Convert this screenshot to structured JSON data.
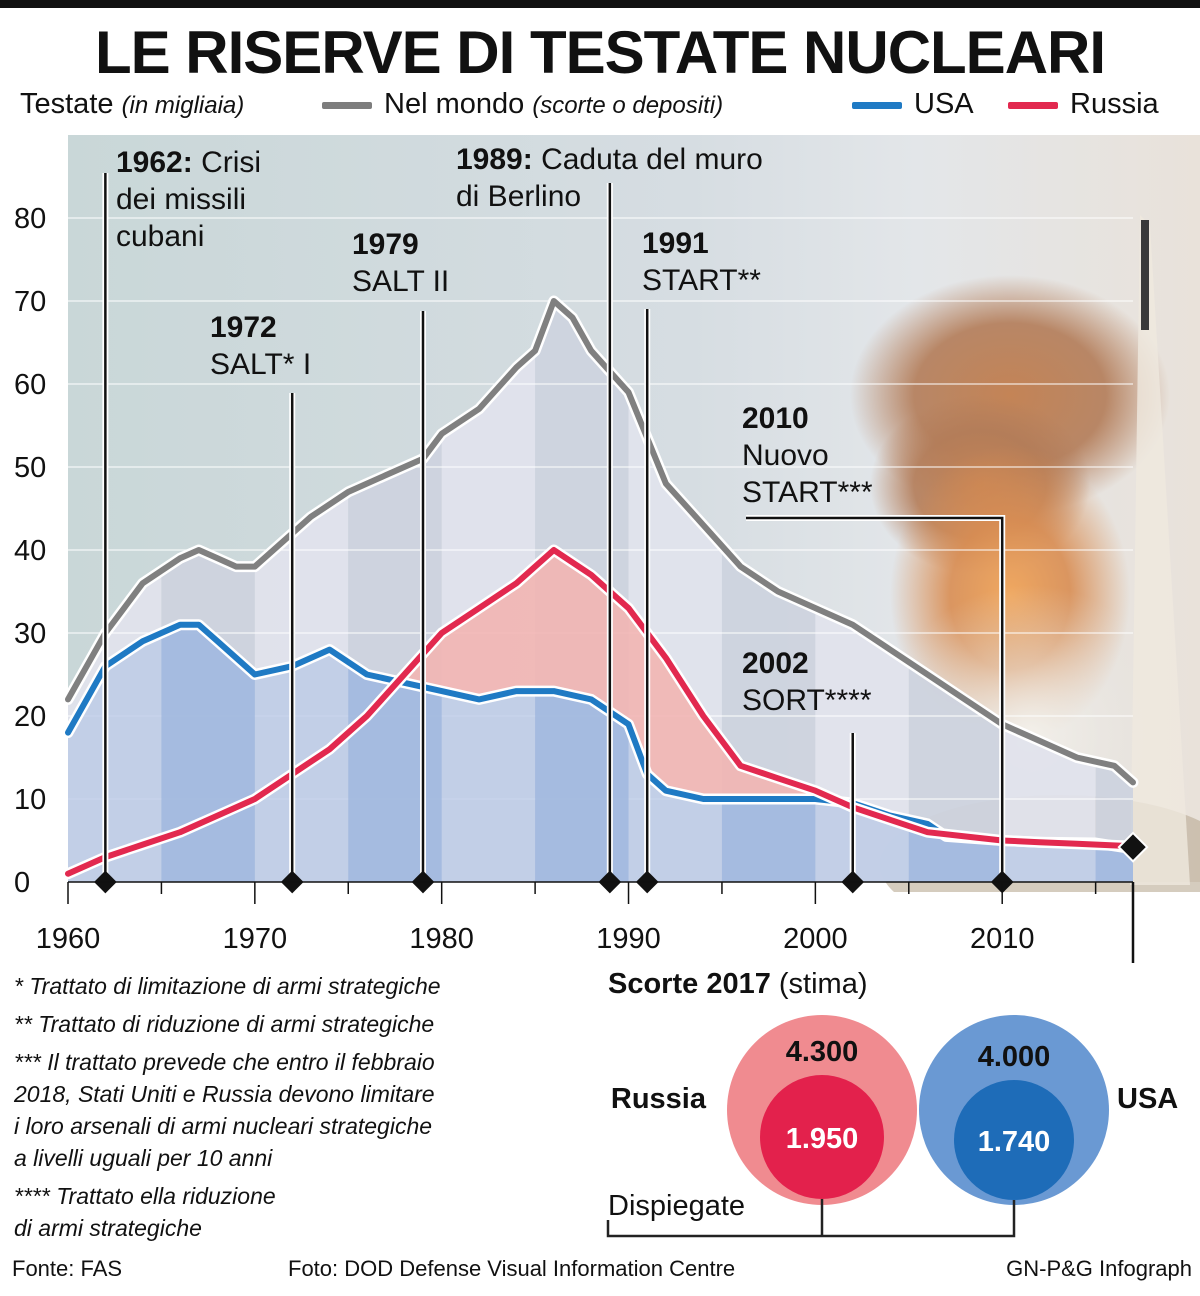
{
  "title": "LE RISERVE DI TESTATE NUCLEARI",
  "header": {
    "y_label": "Testate",
    "y_unit": "(in migliaia)",
    "legend": [
      {
        "name": "Nel mondo",
        "note": "(scorte o depositi)",
        "color": "#808080"
      },
      {
        "name": "USA",
        "note": "",
        "color": "#1f7ac4"
      },
      {
        "name": "Russia",
        "note": "",
        "color": "#e2294f"
      }
    ]
  },
  "chart_data": {
    "type": "line",
    "ylim": [
      0,
      90
    ],
    "xlim": [
      1960,
      2017
    ],
    "y_ticks": [
      0,
      10,
      20,
      30,
      40,
      50,
      60,
      70,
      80
    ],
    "x_ticks": [
      1960,
      1970,
      1980,
      1990,
      2000,
      2010
    ],
    "series": [
      {
        "name": "Nel mondo",
        "color": "#808080",
        "points": [
          [
            1960,
            22
          ],
          [
            1962,
            30
          ],
          [
            1964,
            36
          ],
          [
            1966,
            39
          ],
          [
            1967,
            40
          ],
          [
            1968,
            39
          ],
          [
            1969,
            38
          ],
          [
            1970,
            38
          ],
          [
            1971,
            40
          ],
          [
            1973,
            44
          ],
          [
            1975,
            47
          ],
          [
            1977,
            49
          ],
          [
            1979,
            51
          ],
          [
            1980,
            54
          ],
          [
            1982,
            57
          ],
          [
            1984,
            62
          ],
          [
            1985,
            64
          ],
          [
            1986,
            70
          ],
          [
            1987,
            68
          ],
          [
            1988,
            64
          ],
          [
            1990,
            59
          ],
          [
            1992,
            48
          ],
          [
            1994,
            43
          ],
          [
            1996,
            38
          ],
          [
            1998,
            35
          ],
          [
            2000,
            33
          ],
          [
            2002,
            31
          ],
          [
            2004,
            28
          ],
          [
            2006,
            25
          ],
          [
            2008,
            22
          ],
          [
            2010,
            19
          ],
          [
            2012,
            17
          ],
          [
            2014,
            15
          ],
          [
            2016,
            14
          ],
          [
            2017,
            12
          ]
        ]
      },
      {
        "name": "USA",
        "color": "#1f7ac4",
        "points": [
          [
            1960,
            18
          ],
          [
            1962,
            26
          ],
          [
            1964,
            29
          ],
          [
            1966,
            31
          ],
          [
            1967,
            31
          ],
          [
            1968,
            29
          ],
          [
            1970,
            25
          ],
          [
            1972,
            26
          ],
          [
            1974,
            28
          ],
          [
            1976,
            25
          ],
          [
            1978,
            24
          ],
          [
            1980,
            23
          ],
          [
            1982,
            22
          ],
          [
            1984,
            23
          ],
          [
            1986,
            23
          ],
          [
            1988,
            22
          ],
          [
            1990,
            19
          ],
          [
            1991,
            13
          ],
          [
            1992,
            11
          ],
          [
            1994,
            10
          ],
          [
            1996,
            10
          ],
          [
            1998,
            10
          ],
          [
            2000,
            10
          ],
          [
            2002,
            9.5
          ],
          [
            2004,
            8
          ],
          [
            2006,
            7
          ],
          [
            2007,
            5.5
          ],
          [
            2010,
            5
          ],
          [
            2012,
            4.8
          ],
          [
            2015,
            4.7
          ],
          [
            2017,
            4.0
          ]
        ]
      },
      {
        "name": "Russia",
        "color": "#e2294f",
        "points": [
          [
            1960,
            1
          ],
          [
            1962,
            3
          ],
          [
            1964,
            4.5
          ],
          [
            1966,
            6
          ],
          [
            1968,
            8
          ],
          [
            1970,
            10
          ],
          [
            1972,
            13
          ],
          [
            1974,
            16
          ],
          [
            1976,
            20
          ],
          [
            1978,
            25
          ],
          [
            1980,
            30
          ],
          [
            1982,
            33
          ],
          [
            1984,
            36
          ],
          [
            1986,
            40
          ],
          [
            1988,
            37
          ],
          [
            1990,
            33
          ],
          [
            1992,
            27
          ],
          [
            1994,
            20
          ],
          [
            1996,
            14
          ],
          [
            1998,
            12.5
          ],
          [
            2000,
            11
          ],
          [
            2002,
            9
          ],
          [
            2004,
            7.5
          ],
          [
            2006,
            6
          ],
          [
            2008,
            5.5
          ],
          [
            2010,
            5
          ],
          [
            2012,
            4.8
          ],
          [
            2014,
            4.6
          ],
          [
            2017,
            4.3
          ]
        ]
      }
    ],
    "annotations": [
      {
        "year": 1962,
        "bold": "1962:",
        "lines": [
          "Crisi",
          "dei missili",
          "cubani"
        ]
      },
      {
        "year": 1972,
        "bold": "1972",
        "lines": [
          "SALT* I"
        ]
      },
      {
        "year": 1979,
        "bold": "1979",
        "lines": [
          "SALT II"
        ]
      },
      {
        "year": 1989,
        "bold": "1989:",
        "lines": [
          "Caduta del muro",
          "di Berlino"
        ]
      },
      {
        "year": 1991,
        "bold": "1991",
        "lines": [
          "START**"
        ]
      },
      {
        "year": 2002,
        "bold": "2002",
        "lines": [
          "SORT****"
        ]
      },
      {
        "year": 2010,
        "bold": "2010",
        "lines": [
          "Nuovo",
          "START***"
        ]
      }
    ]
  },
  "footnotes": [
    "* Trattato di limitazione di armi strategiche",
    "** Trattato di riduzione di armi strategiche",
    "*** Il trattato prevede che entro il febbraio",
    "2018, Stati Uniti e Russia devono limitare",
    "i loro arsenali di armi nucleari strategiche",
    "a livelli uguali per 10 anni",
    "**** Trattato ella riduzione",
    "di armi strategiche"
  ],
  "stocks": {
    "title_bold": "Scorte 2017",
    "title_rest": "(stima)",
    "deployed_label": "Dispiegate",
    "countries": [
      {
        "name": "Russia",
        "total": "4.300",
        "deployed": "1.950",
        "total_value": 4300,
        "deployed_value": 1950,
        "outer_color": "#f08b90",
        "inner_color": "#e3214c"
      },
      {
        "name": "USA",
        "total": "4.000",
        "deployed": "1.740",
        "total_value": 4000,
        "deployed_value": 1740,
        "outer_color": "#6a99d3",
        "inner_color": "#1e6cb8"
      }
    ]
  },
  "footer": {
    "source": "Fonte: FAS",
    "photo": "Foto: DOD Defense Visual Information Centre",
    "credit": "GN-P&G Infograph"
  }
}
